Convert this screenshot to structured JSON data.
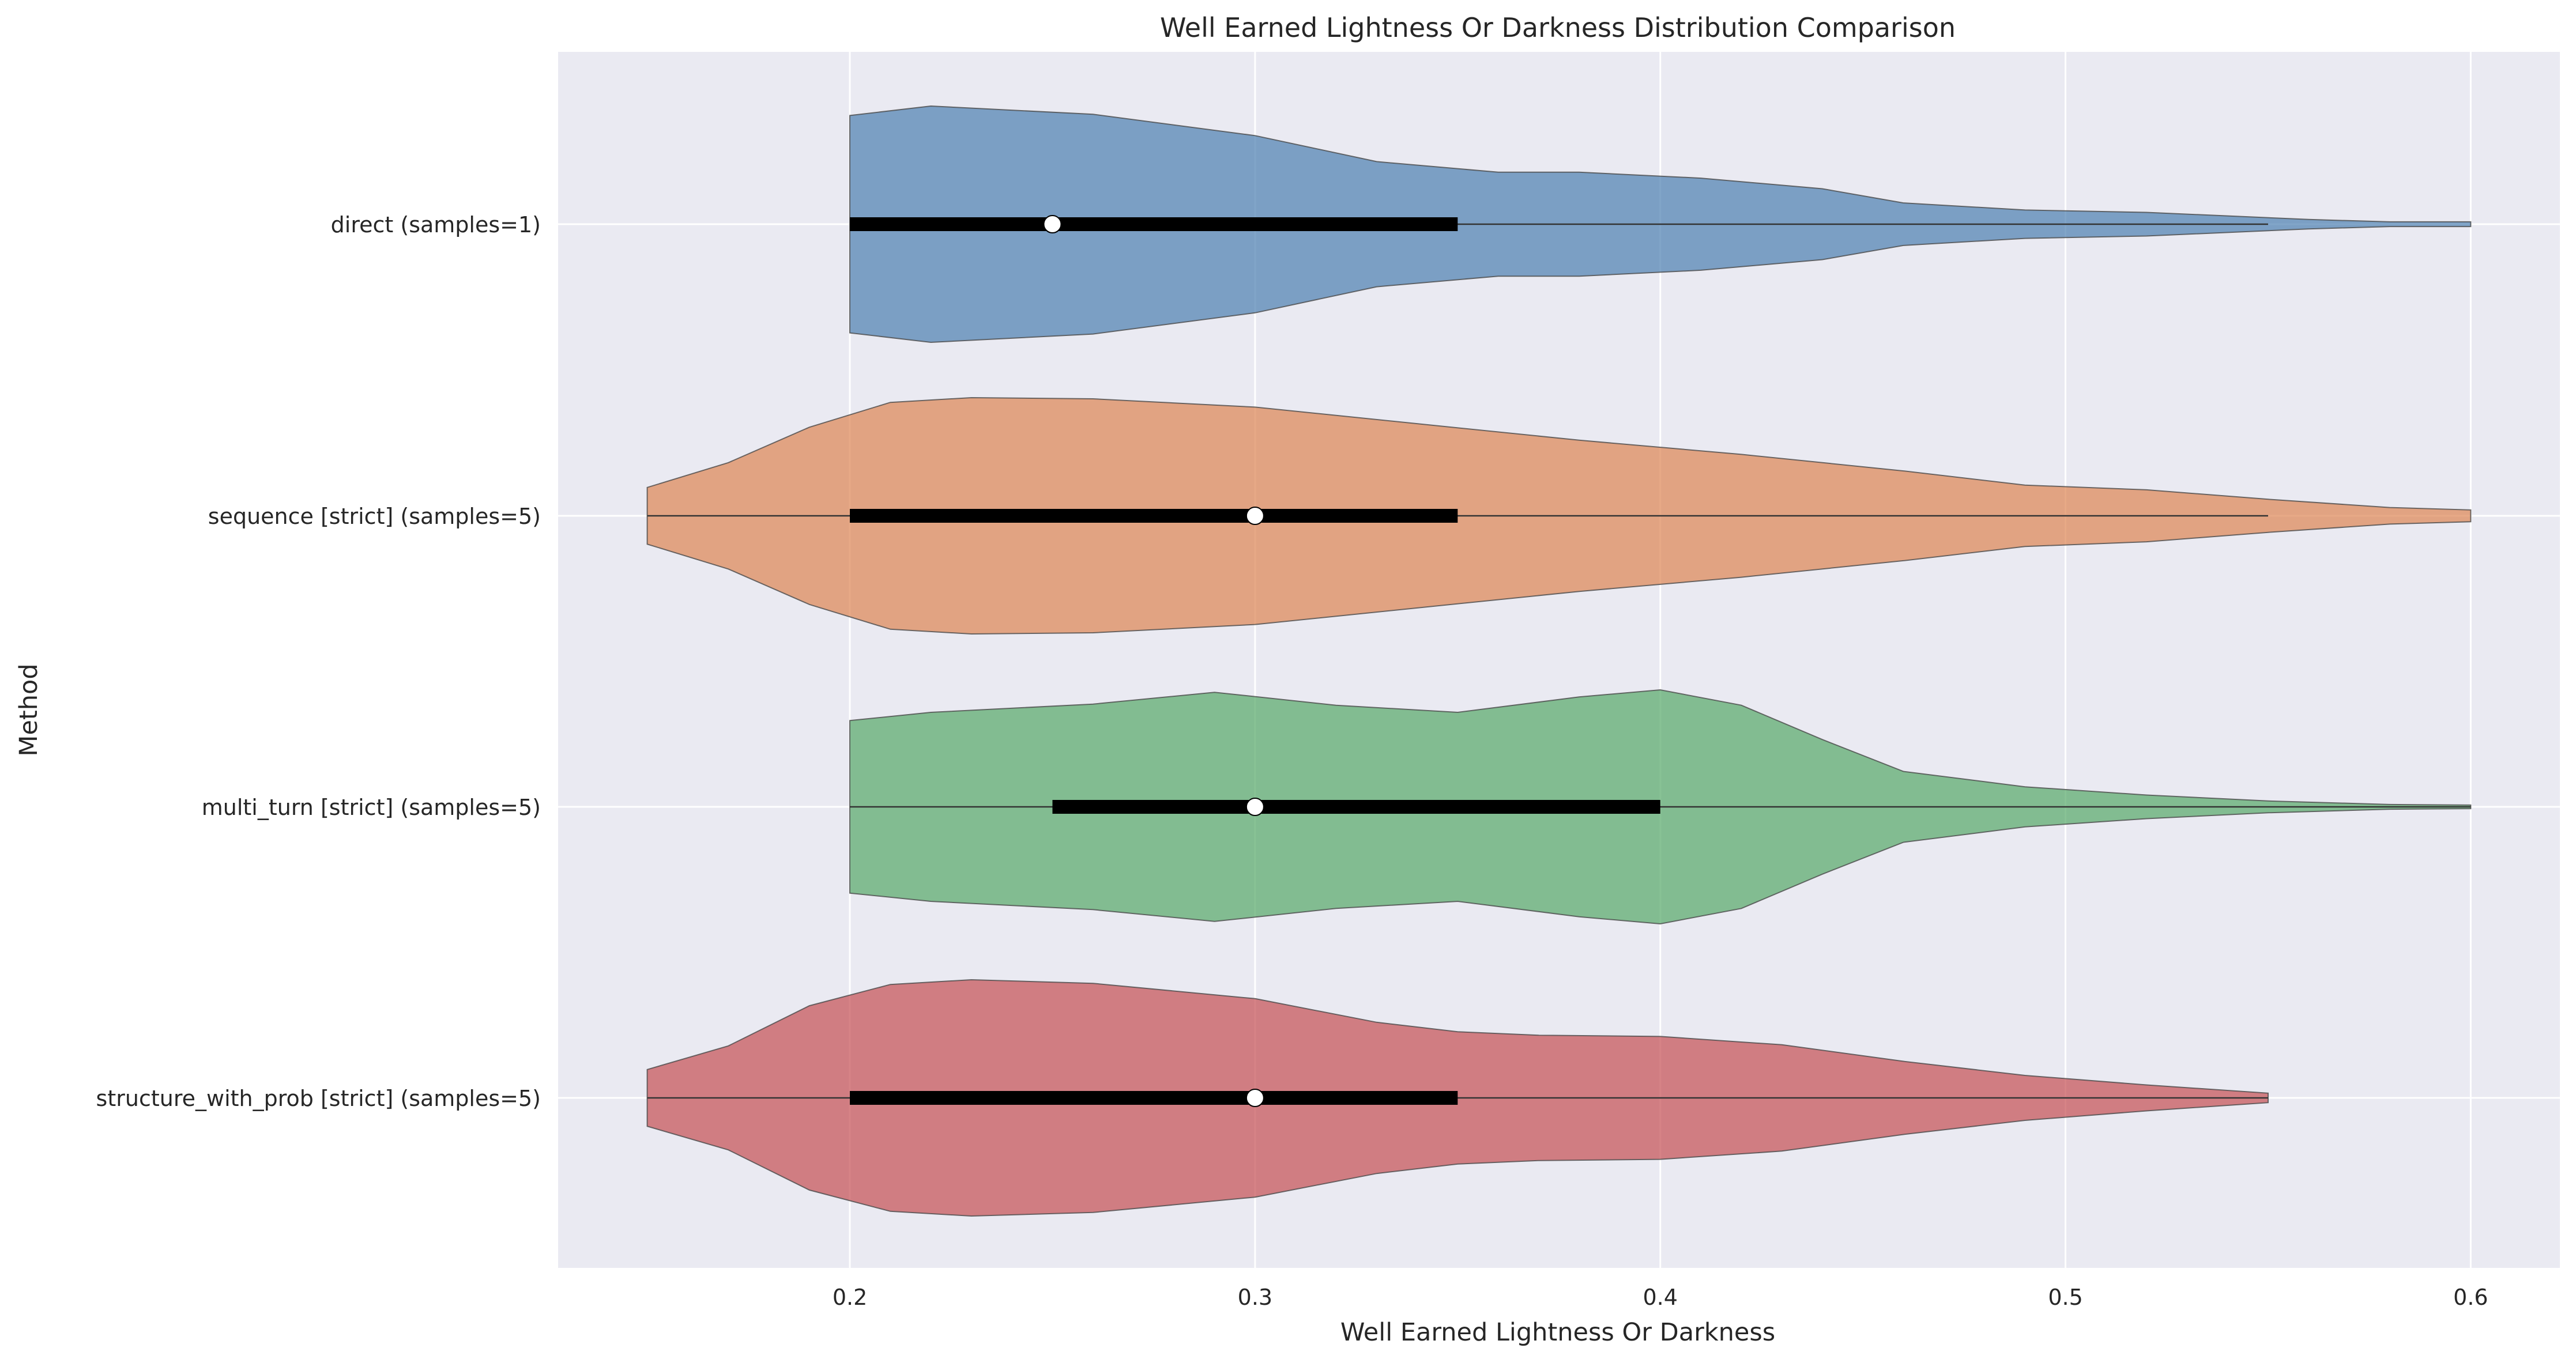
{
  "chart_data": {
    "type": "violin",
    "orientation": "horizontal",
    "title": "Well Earned Lightness Or Darkness Distribution Comparison",
    "xlabel": "Well Earned Lightness Or Darkness",
    "ylabel": "Method",
    "xlim": [
      0.128,
      0.622
    ],
    "xticks": [
      0.2,
      0.3,
      0.4,
      0.5,
      0.6
    ],
    "xtick_labels": [
      "0.2",
      "0.3",
      "0.4",
      "0.5",
      "0.6"
    ],
    "grid": true,
    "style": "seaborn-darkgrid",
    "series": [
      {
        "name": "direct (samples=1)",
        "color": "#4c7fb0",
        "min": 0.2,
        "q1": 0.2,
        "median": 0.25,
        "q3": 0.35,
        "max": 0.6,
        "whisker_high": 0.55,
        "density": [
          [
            0.2,
            0.92
          ],
          [
            0.22,
            1.0
          ],
          [
            0.26,
            0.93
          ],
          [
            0.3,
            0.75
          ],
          [
            0.33,
            0.53
          ],
          [
            0.36,
            0.44
          ],
          [
            0.38,
            0.44
          ],
          [
            0.41,
            0.39
          ],
          [
            0.44,
            0.3
          ],
          [
            0.46,
            0.18
          ],
          [
            0.49,
            0.12
          ],
          [
            0.52,
            0.1
          ],
          [
            0.56,
            0.04
          ],
          [
            0.58,
            0.02
          ],
          [
            0.6,
            0.02
          ]
        ]
      },
      {
        "name": "sequence [strict] (samples=5)",
        "color": "#dd8452",
        "min": 0.15,
        "q1": 0.2,
        "median": 0.3,
        "q3": 0.35,
        "max": 0.6,
        "whisker_low": 0.15,
        "whisker_high": 0.55,
        "density": [
          [
            0.15,
            0.24
          ],
          [
            0.17,
            0.45
          ],
          [
            0.19,
            0.75
          ],
          [
            0.21,
            0.96
          ],
          [
            0.23,
            1.0
          ],
          [
            0.26,
            0.99
          ],
          [
            0.3,
            0.92
          ],
          [
            0.34,
            0.78
          ],
          [
            0.38,
            0.64
          ],
          [
            0.42,
            0.52
          ],
          [
            0.46,
            0.38
          ],
          [
            0.49,
            0.26
          ],
          [
            0.52,
            0.22
          ],
          [
            0.55,
            0.14
          ],
          [
            0.58,
            0.07
          ],
          [
            0.6,
            0.05
          ]
        ]
      },
      {
        "name": "multi_turn [strict] (samples=5)",
        "color": "#55a868",
        "min": 0.2,
        "q1": 0.25,
        "median": 0.3,
        "q3": 0.4,
        "max": 0.6,
        "density": [
          [
            0.2,
            0.73
          ],
          [
            0.22,
            0.8
          ],
          [
            0.26,
            0.87
          ],
          [
            0.29,
            0.97
          ],
          [
            0.32,
            0.86
          ],
          [
            0.35,
            0.8
          ],
          [
            0.38,
            0.93
          ],
          [
            0.4,
            0.99
          ],
          [
            0.42,
            0.86
          ],
          [
            0.44,
            0.57
          ],
          [
            0.46,
            0.3
          ],
          [
            0.49,
            0.17
          ],
          [
            0.52,
            0.1
          ],
          [
            0.55,
            0.05
          ],
          [
            0.58,
            0.02
          ],
          [
            0.6,
            0.015
          ]
        ]
      },
      {
        "name": "structure_with_prob [strict] (samples=5)",
        "color": "#c44e52",
        "min": 0.15,
        "q1": 0.2,
        "median": 0.3,
        "q3": 0.35,
        "max": 0.55,
        "whisker_low": 0.15,
        "density": [
          [
            0.15,
            0.24
          ],
          [
            0.17,
            0.44
          ],
          [
            0.19,
            0.78
          ],
          [
            0.21,
            0.96
          ],
          [
            0.23,
            1.0
          ],
          [
            0.26,
            0.97
          ],
          [
            0.3,
            0.84
          ],
          [
            0.33,
            0.64
          ],
          [
            0.35,
            0.56
          ],
          [
            0.37,
            0.53
          ],
          [
            0.4,
            0.52
          ],
          [
            0.43,
            0.45
          ],
          [
            0.46,
            0.31
          ],
          [
            0.49,
            0.19
          ],
          [
            0.52,
            0.11
          ],
          [
            0.55,
            0.04
          ]
        ]
      }
    ]
  }
}
